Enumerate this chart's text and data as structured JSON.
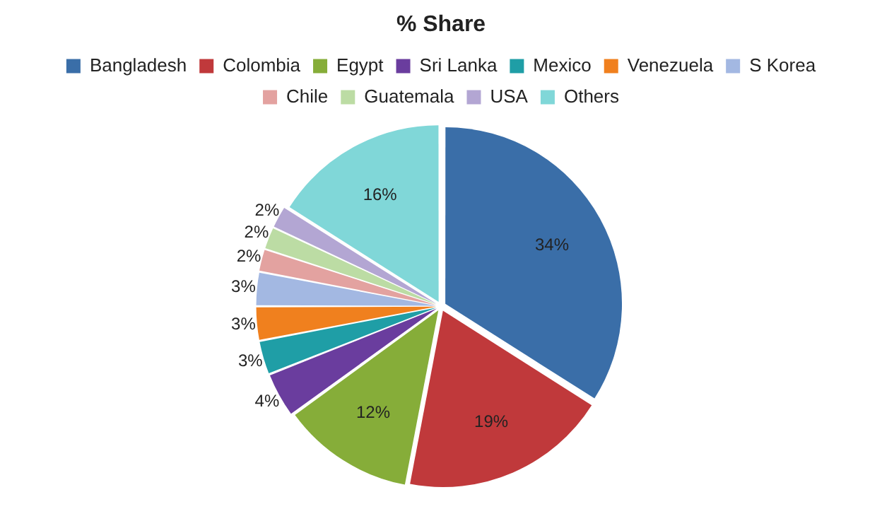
{
  "chart_data": {
    "type": "pie",
    "title": "% Share",
    "categories": [
      "Bangladesh",
      "Colombia",
      "Egypt",
      "Sri Lanka",
      "Mexico",
      "Venezuela",
      "S Korea",
      "Chile",
      "Guatemala",
      "USA",
      "Others"
    ],
    "values": [
      34,
      19,
      12,
      4,
      3,
      3,
      3,
      2,
      2,
      2,
      16
    ],
    "value_labels": [
      "34%",
      "19%",
      "12%",
      "4%",
      "3%",
      "3%",
      "3%",
      "2%",
      "2%",
      "2%",
      "16%"
    ],
    "colors": [
      "#3a6ea8",
      "#c0393b",
      "#86ad39",
      "#6a3d9e",
      "#1f9ea6",
      "#f0801e",
      "#a3b8e2",
      "#e3a2a0",
      "#bcdca4",
      "#b3a6d3",
      "#80d7d8"
    ],
    "legend": "top"
  }
}
